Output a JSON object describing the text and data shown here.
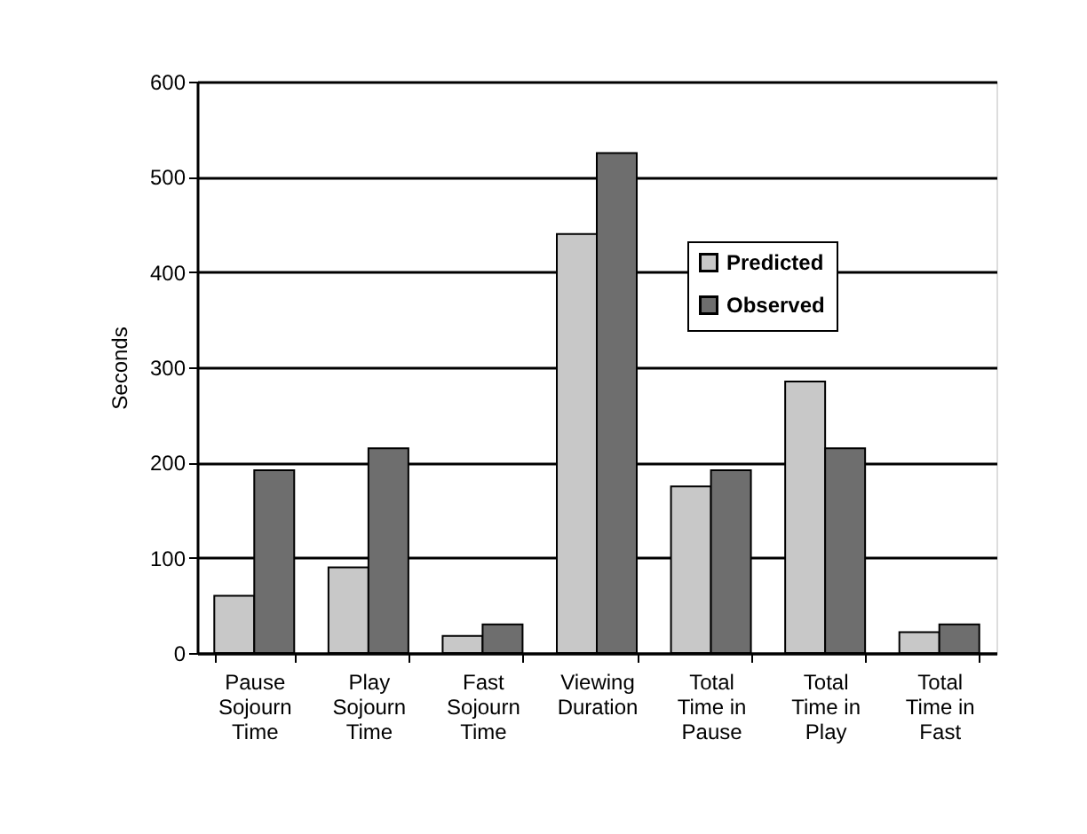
{
  "chart_data": {
    "type": "bar",
    "ylabel": "Seconds",
    "categories": [
      "Pause\nSojourn\nTime",
      "Play\nSojourn\nTime",
      "Fast\nSojourn\nTime",
      "Viewing\nDuration",
      "Total\nTime in\nPause",
      "Total\nTime in\nPlay",
      "Total\nTime in\nFast"
    ],
    "series": [
      {
        "name": "Predicted",
        "color": "#c8c8c8",
        "values": [
          60,
          90,
          18,
          440,
          175,
          285,
          22
        ]
      },
      {
        "name": "Observed",
        "color": "#6e6e6e",
        "values": [
          192,
          215,
          30,
          525,
          192,
          215,
          30
        ]
      }
    ],
    "ylim": [
      0,
      600
    ],
    "yticks": [
      0,
      100,
      200,
      300,
      400,
      500,
      600
    ],
    "grid": "y",
    "legend": "top right"
  }
}
